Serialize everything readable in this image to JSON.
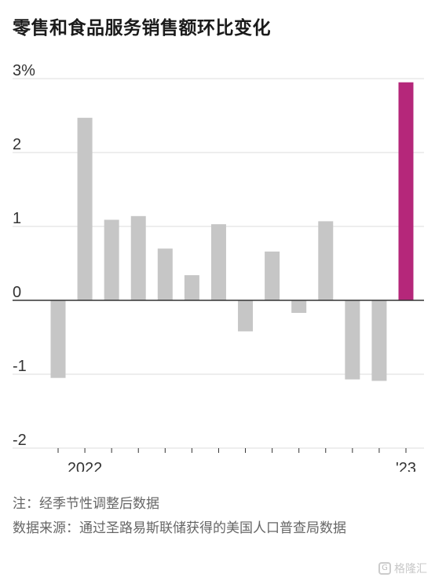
{
  "title": "零售和食品服务销售额环比变化",
  "chart_data": {
    "type": "bar",
    "title": "零售和食品服务销售额环比变化",
    "xlabel": "",
    "ylabel": "",
    "ylim": [
      -2,
      3
    ],
    "y_ticks": [
      {
        "value": 3,
        "label": "3%"
      },
      {
        "value": 2,
        "label": "2"
      },
      {
        "value": 1,
        "label": "1"
      },
      {
        "value": 0,
        "label": "0"
      },
      {
        "value": -1,
        "label": "-1"
      },
      {
        "value": -2,
        "label": "-2"
      }
    ],
    "x_tick_labels": [
      {
        "index": 1,
        "label": "2022"
      },
      {
        "index": 13,
        "label": "'23"
      }
    ],
    "values": [
      -1.05,
      2.47,
      1.09,
      1.14,
      0.7,
      0.34,
      1.03,
      -0.42,
      0.66,
      -0.17,
      1.07,
      -1.07,
      -1.09,
      2.95
    ],
    "highlight_index": 13,
    "colors": {
      "default": "#c6c6c6",
      "highlight": "#b5277a",
      "grid": "#dcdcdc",
      "zero": "#333333"
    }
  },
  "notes": {
    "note": "注：经季节性调整后数据",
    "source": "数据来源：通过圣路易斯联储获得的美国人口普查局数据"
  },
  "watermark": {
    "text": "格隆汇",
    "icon": "logo-icon"
  }
}
